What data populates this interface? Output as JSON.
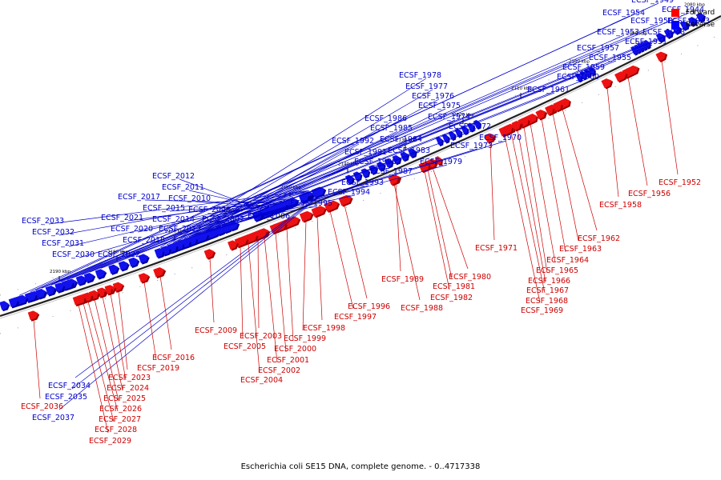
{
  "caption": "Escherichia coli SE15 DNA, complete genome. - 0..4717338",
  "legend": {
    "forward_label": "Forward",
    "reverse_label": "Reverse",
    "forward_color": "#ff0000",
    "reverse_color": "#0000ff"
  },
  "colors": {
    "forward_fill": "#ee1111",
    "forward_shade": "#990000",
    "reverse_fill": "#1111ee",
    "reverse_shade": "#000099",
    "forward_label": "#cc0000",
    "reverse_label": "#0000cc",
    "backbone": "#222222"
  },
  "ticks": [
    "2080 kbp",
    "2090 kbp",
    "2100 kbp",
    "2110 kbp",
    "2120 kbp",
    "2130 kbp",
    "2140 kbp",
    "2150 kbp",
    "2160 kbp",
    "2170 kbp",
    "2180 kbp",
    "2190 kbp"
  ],
  "genes_reverse": [
    "ECSF_1949",
    "ECSF_1954",
    "ECSF_1950",
    "ECSF_1944",
    "ECSF_1943",
    "ECSF_1953",
    "ECSF_1948",
    "ECSF_1951",
    "ECSF_1957",
    "ECSF_1955",
    "ECSF_1959",
    "ECSF_1960",
    "ECSF_1961",
    "ECSF_1978",
    "ECSF_1977",
    "ECSF_1976",
    "ECSF_1975",
    "ECSF_1974",
    "ECSF_1972",
    "ECSF_1973",
    "ECSF_1970",
    "ECSF_1986",
    "ECSF_1985",
    "ECSF_1984",
    "ECSF_1992",
    "ECSF_1983",
    "ECSF_1991",
    "ECSF_1990",
    "ECSF_1979",
    "ECSF_1987",
    "ECSF_1993",
    "ECSF_1994",
    "ECSF_1995",
    "ECSF_2012",
    "ECSF_2011",
    "ECSF_2017",
    "ECSF_2010",
    "ECSF_2015",
    "ECSF_2008",
    "ECSF_2021",
    "ECSF_2014",
    "ECSF_2007",
    "ECSF_2006",
    "ECSF_2033",
    "ECSF_2020",
    "ECSF_2013",
    "ECSF_2032",
    "ECSF_2018",
    "ECSF_2031",
    "ECSF_2030",
    "ECSF_2022",
    "ECSF_2034",
    "ECSF_2035",
    "ECSF_2037"
  ],
  "genes_forward": [
    "ECSF_1952",
    "ECSF_1956",
    "ECSF_1958",
    "ECSF_1962",
    "ECSF_1971",
    "ECSF_1963",
    "ECSF_1964",
    "ECSF_1965",
    "ECSF_1980",
    "ECSF_1989",
    "ECSF_1966",
    "ECSF_1981",
    "ECSF_1967",
    "ECSF_1982",
    "ECSF_1968",
    "ECSF_1996",
    "ECSF_1988",
    "ECSF_1969",
    "ECSF_1997",
    "ECSF_1998",
    "ECSF_2009",
    "ECSF_1999",
    "ECSF_2003",
    "ECSF_2005",
    "ECSF_2000",
    "ECSF_2016",
    "ECSF_2001",
    "ECSF_2019",
    "ECSF_2002",
    "ECSF_2023",
    "ECSF_2004",
    "ECSF_2024",
    "ECSF_2025",
    "ECSF_2036",
    "ECSF_2026",
    "ECSF_2027",
    "ECSF_2028",
    "ECSF_2029"
  ]
}
